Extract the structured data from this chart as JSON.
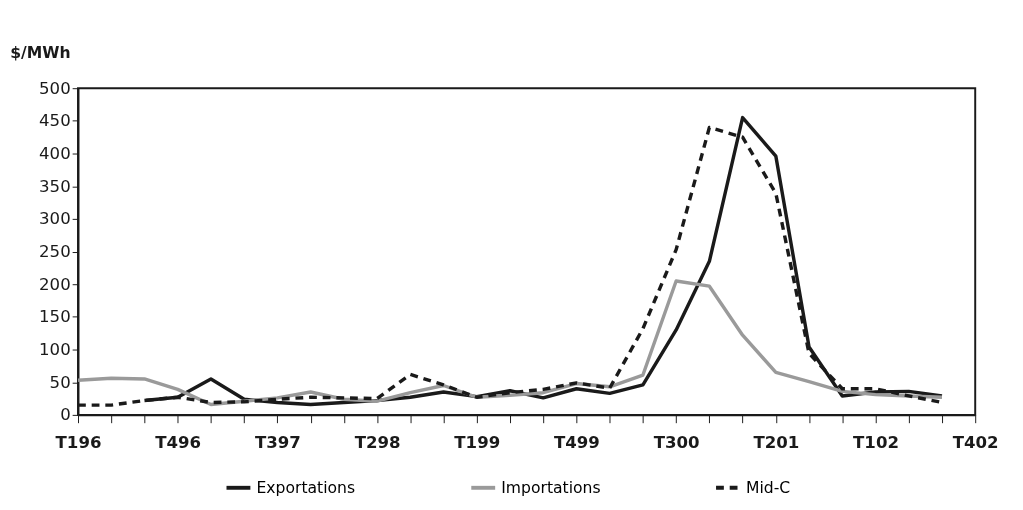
{
  "chart_data": {
    "type": "line",
    "ylabel": "$/MWh",
    "categories": [
      "T196",
      null,
      null,
      "T496",
      null,
      null,
      "T397",
      null,
      null,
      "T298",
      null,
      null,
      "T199",
      null,
      null,
      "T499",
      null,
      null,
      "T300",
      null,
      null,
      "T201",
      null,
      null,
      "T102",
      null,
      null,
      "T402"
    ],
    "ylim": [
      0,
      500
    ],
    "yticks": [
      0,
      50,
      100,
      150,
      200,
      250,
      300,
      350,
      400,
      450,
      500
    ],
    "grid": false,
    "legend": "bottom",
    "series": [
      {
        "name": "Exportations",
        "color": "#1a1a1a",
        "line_style": "solid",
        "values": [
          null,
          null,
          22,
          27,
          55,
          24,
          19,
          16,
          19,
          22,
          27,
          35,
          28,
          37,
          26,
          40,
          33,
          46,
          130,
          235,
          455,
          396,
          104,
          29,
          35,
          36,
          29,
          null
        ]
      },
      {
        "name": "Importations",
        "color": "#9a9a9a",
        "line_style": "solid",
        "values": [
          53,
          56,
          55,
          39,
          16,
          21,
          26,
          35,
          24,
          21,
          34,
          45,
          27,
          30,
          34,
          48,
          43,
          61,
          205,
          197,
          122,
          65,
          51,
          36,
          31,
          29,
          27,
          null
        ]
      },
      {
        "name": "Mid-C",
        "color": "#1a1a1a",
        "line_style": "dashed",
        "values": [
          15,
          15,
          22,
          27,
          19,
          20,
          24,
          27,
          26,
          25,
          62,
          46,
          27,
          34,
          39,
          49,
          41,
          132,
          253,
          440,
          425,
          339,
          94,
          40,
          40,
          29,
          19,
          null
        ]
      }
    ]
  }
}
